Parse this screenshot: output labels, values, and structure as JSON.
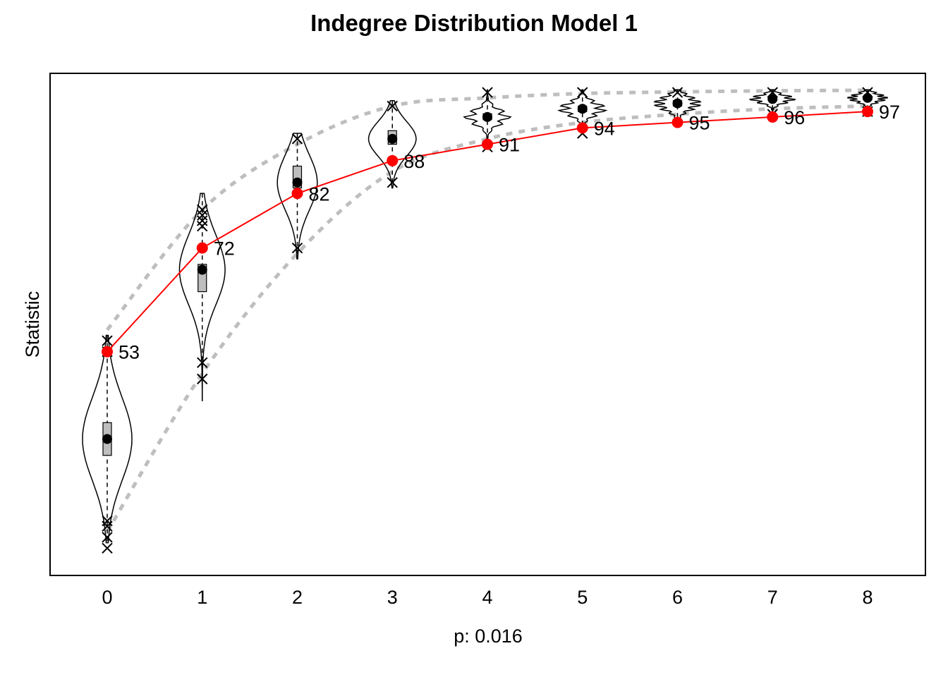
{
  "chart_data": {
    "type": "violin",
    "title": "Indegree Distribution Model 1",
    "xlabel": "p: 0.016",
    "ylabel": "Statistic",
    "categories": [
      "0",
      "1",
      "2",
      "3",
      "4",
      "5",
      "6",
      "7",
      "8"
    ],
    "ylim": [
      12,
      104
    ],
    "grid": false,
    "legend": "none",
    "observed": {
      "name": "observed",
      "color": "#ff0000",
      "values": [
        53,
        72,
        82,
        88,
        91,
        94,
        95,
        96,
        97
      ]
    },
    "simulated": {
      "color": "#000000",
      "medians": [
        37,
        68,
        84,
        92,
        96,
        97.5,
        98.5,
        99.3,
        99.5
      ],
      "q1": [
        34,
        64,
        83,
        91,
        95.5,
        97,
        98,
        99,
        99.2
      ],
      "q3": [
        40,
        69,
        87,
        93.5,
        96.6,
        98,
        99,
        99.6,
        99.8
      ],
      "whisker_low": [
        18,
        44,
        70,
        83,
        90.5,
        93,
        95,
        96,
        97
      ],
      "whisker_high": [
        56,
        82,
        93,
        99,
        101,
        101,
        101,
        101,
        101
      ],
      "outliers": [
        {
          "x": 0,
          "y": [
            17,
            19,
            21,
            22,
            53,
            55
          ]
        },
        {
          "x": 1,
          "y": [
            48,
            51,
            76,
            77,
            78,
            79
          ]
        },
        {
          "x": 2,
          "y": [
            72,
            92
          ]
        },
        {
          "x": 3,
          "y": [
            84,
            98
          ]
        },
        {
          "x": 4,
          "y": [
            90.5,
            100.5
          ]
        },
        {
          "x": 5,
          "y": [
            93,
            100.5
          ]
        },
        {
          "x": 6,
          "y": [
            100.5
          ]
        },
        {
          "x": 7,
          "y": [
            96.5,
            100.5
          ]
        },
        {
          "x": 8,
          "y": [
            97,
            100.5
          ]
        }
      ],
      "violin_halfwidth": [
        0.26,
        0.24,
        0.21,
        0.25,
        0.25,
        0.26,
        0.26,
        0.25,
        0.22
      ],
      "ci_upper": [
        57,
        79,
        91,
        98,
        99.5,
        100.3,
        100.6,
        100.8,
        100.9
      ],
      "ci_lower": [
        20,
        49,
        71,
        86,
        92,
        95,
        96.5,
        97.5,
        98
      ]
    }
  }
}
